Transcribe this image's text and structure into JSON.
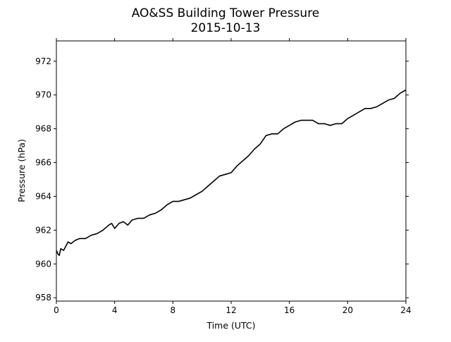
{
  "chart_data": {
    "type": "line",
    "title": "AO&SS Building Tower Pressure",
    "subtitle": "2015-10-13",
    "xlabel": "Time (UTC)",
    "ylabel": "Pressure (hPa)",
    "xlim": [
      0,
      24
    ],
    "ylim": [
      957.8,
      973.2
    ],
    "xticks": [
      0,
      4,
      8,
      12,
      16,
      20,
      24
    ],
    "yticks": [
      958,
      960,
      962,
      964,
      966,
      968,
      970,
      972
    ],
    "grid": false,
    "line_color": "#000000",
    "series": [
      {
        "x": [
          0,
          0.1,
          0.2,
          0.3,
          0.5,
          0.8,
          1.0,
          1.3,
          1.6,
          2.0,
          2.4,
          2.8,
          3.2,
          3.6,
          3.8,
          4.0,
          4.3,
          4.6,
          4.9,
          5.2,
          5.6,
          6.0,
          6.4,
          6.8,
          7.2,
          7.6,
          8.0,
          8.4,
          8.8,
          9.2,
          9.6,
          10.0,
          10.4,
          10.8,
          11.2,
          11.6,
          12.0,
          12.4,
          12.8,
          13.2,
          13.6,
          14.0,
          14.4,
          14.8,
          15.2,
          15.6,
          16.0,
          16.4,
          16.8,
          17.2,
          17.6,
          18.0,
          18.4,
          18.8,
          19.2,
          19.6,
          20.0,
          20.4,
          20.8,
          21.2,
          21.6,
          22.0,
          22.4,
          22.8,
          23.2,
          23.6,
          24.0
        ],
        "y": [
          960.8,
          960.6,
          960.5,
          960.9,
          960.8,
          961.3,
          961.2,
          961.4,
          961.5,
          961.5,
          961.7,
          961.8,
          962.0,
          962.3,
          962.4,
          962.1,
          962.4,
          962.5,
          962.3,
          962.6,
          962.7,
          962.7,
          962.9,
          963.0,
          963.2,
          963.5,
          963.7,
          963.7,
          963.8,
          963.9,
          964.1,
          964.3,
          964.6,
          964.9,
          965.2,
          965.3,
          965.4,
          965.8,
          966.1,
          966.4,
          966.8,
          967.1,
          967.6,
          967.7,
          967.7,
          968.0,
          968.2,
          968.4,
          968.5,
          968.5,
          968.5,
          968.3,
          968.3,
          968.2,
          968.3,
          968.3,
          968.6,
          968.8,
          969.0,
          969.2,
          969.2,
          969.3,
          969.5,
          969.7,
          969.8,
          970.1,
          970.3
        ]
      }
    ]
  }
}
